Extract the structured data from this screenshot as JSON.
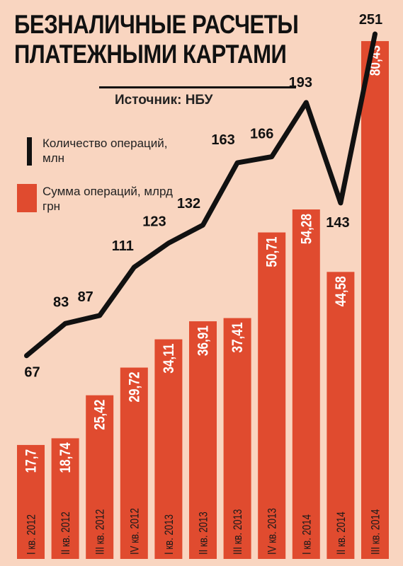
{
  "title_lines": [
    "БЕЗНАЛИЧНЫЕ РАСЧЕТЫ",
    "ПЛАТЕЖНЫМИ КАРТАМИ"
  ],
  "source": "Источник: НБУ",
  "legend": {
    "line_label": "Количество операций, млн",
    "bar_label": "Сумма операций, млрд грн"
  },
  "colors": {
    "bar": "#e04b2f",
    "line": "#111111",
    "background": "#f9d5c0",
    "bar_text": "#ffffff"
  },
  "chart_data": {
    "type": "bar+line",
    "categories": [
      "I кв. 2012",
      "II кв. 2012",
      "III кв. 2012",
      "IV кв. 2012",
      "I кв. 2013",
      "II кв. 2013",
      "III кв. 2013",
      "IV кв. 2013",
      "I кв. 2014",
      "II кв. 2014",
      "III кв. 2014"
    ],
    "series": [
      {
        "name": "Сумма операций, млрд грн",
        "type": "bar",
        "values": [
          17.7,
          18.74,
          25.42,
          29.72,
          34.11,
          36.91,
          37.41,
          50.71,
          54.28,
          44.58,
          80.43
        ],
        "labels": [
          "17,7",
          "18,74",
          "25,42",
          "29,72",
          "34,11",
          "36,91",
          "37,41",
          "50,71",
          "54,28",
          "44,58",
          "80,43"
        ]
      },
      {
        "name": "Количество операций, млн",
        "type": "line",
        "values": [
          67,
          83,
          87,
          111,
          123,
          132,
          163,
          166,
          193,
          143,
          251
        ],
        "labels": [
          "67",
          "83",
          "87",
          "111",
          "123",
          "132",
          "163",
          "166",
          "193",
          "143",
          "251"
        ]
      }
    ]
  }
}
